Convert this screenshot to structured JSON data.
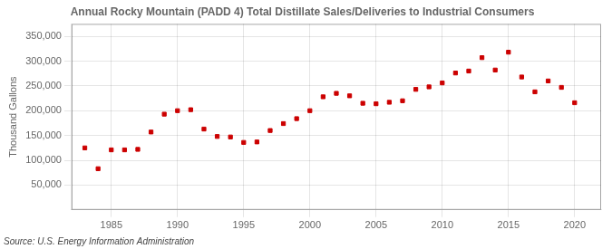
{
  "chart_data": {
    "type": "scatter",
    "title": "Annual Rocky Mountain (PADD 4) Total Distillate Sales/Deliveries to Industrial Consumers",
    "ylabel": "Thousand Gallons",
    "annotations": [
      "Source: U.S. Energy Information Administration"
    ],
    "x": [
      1983,
      1984,
      1985,
      1986,
      1987,
      1988,
      1989,
      1990,
      1991,
      1992,
      1993,
      1994,
      1995,
      1996,
      1997,
      1998,
      1999,
      2000,
      2001,
      2002,
      2003,
      2004,
      2005,
      2006,
      2007,
      2008,
      2009,
      2010,
      2011,
      2012,
      2013,
      2014,
      2015,
      2016,
      2017,
      2018,
      2019,
      2020
    ],
    "values": [
      125000,
      83000,
      121000,
      121000,
      122000,
      157000,
      193000,
      200000,
      202000,
      163000,
      148000,
      147000,
      136000,
      137000,
      160000,
      174000,
      184000,
      200000,
      228000,
      235000,
      230000,
      215000,
      214000,
      217000,
      220000,
      243000,
      248000,
      256000,
      276000,
      280000,
      307000,
      282000,
      318000,
      268000,
      238000,
      260000,
      247000,
      216000
    ],
    "color": "#cc0000",
    "marker": "square",
    "xlim": [
      1982,
      2022
    ],
    "xticks": [
      1985,
      1990,
      1995,
      2000,
      2005,
      2010,
      2015,
      2020
    ],
    "ylim": [
      0,
      375000
    ],
    "yticks": [
      {
        "value": 50000,
        "label": "50,000"
      },
      {
        "value": 100000,
        "label": "100,000"
      },
      {
        "value": 150000,
        "label": "150,000"
      },
      {
        "value": 200000,
        "label": "200,000"
      },
      {
        "value": 250000,
        "label": "250,000"
      },
      {
        "value": 300000,
        "label": "300,000"
      },
      {
        "value": 350000,
        "label": "350,000"
      }
    ],
    "grid": true
  }
}
